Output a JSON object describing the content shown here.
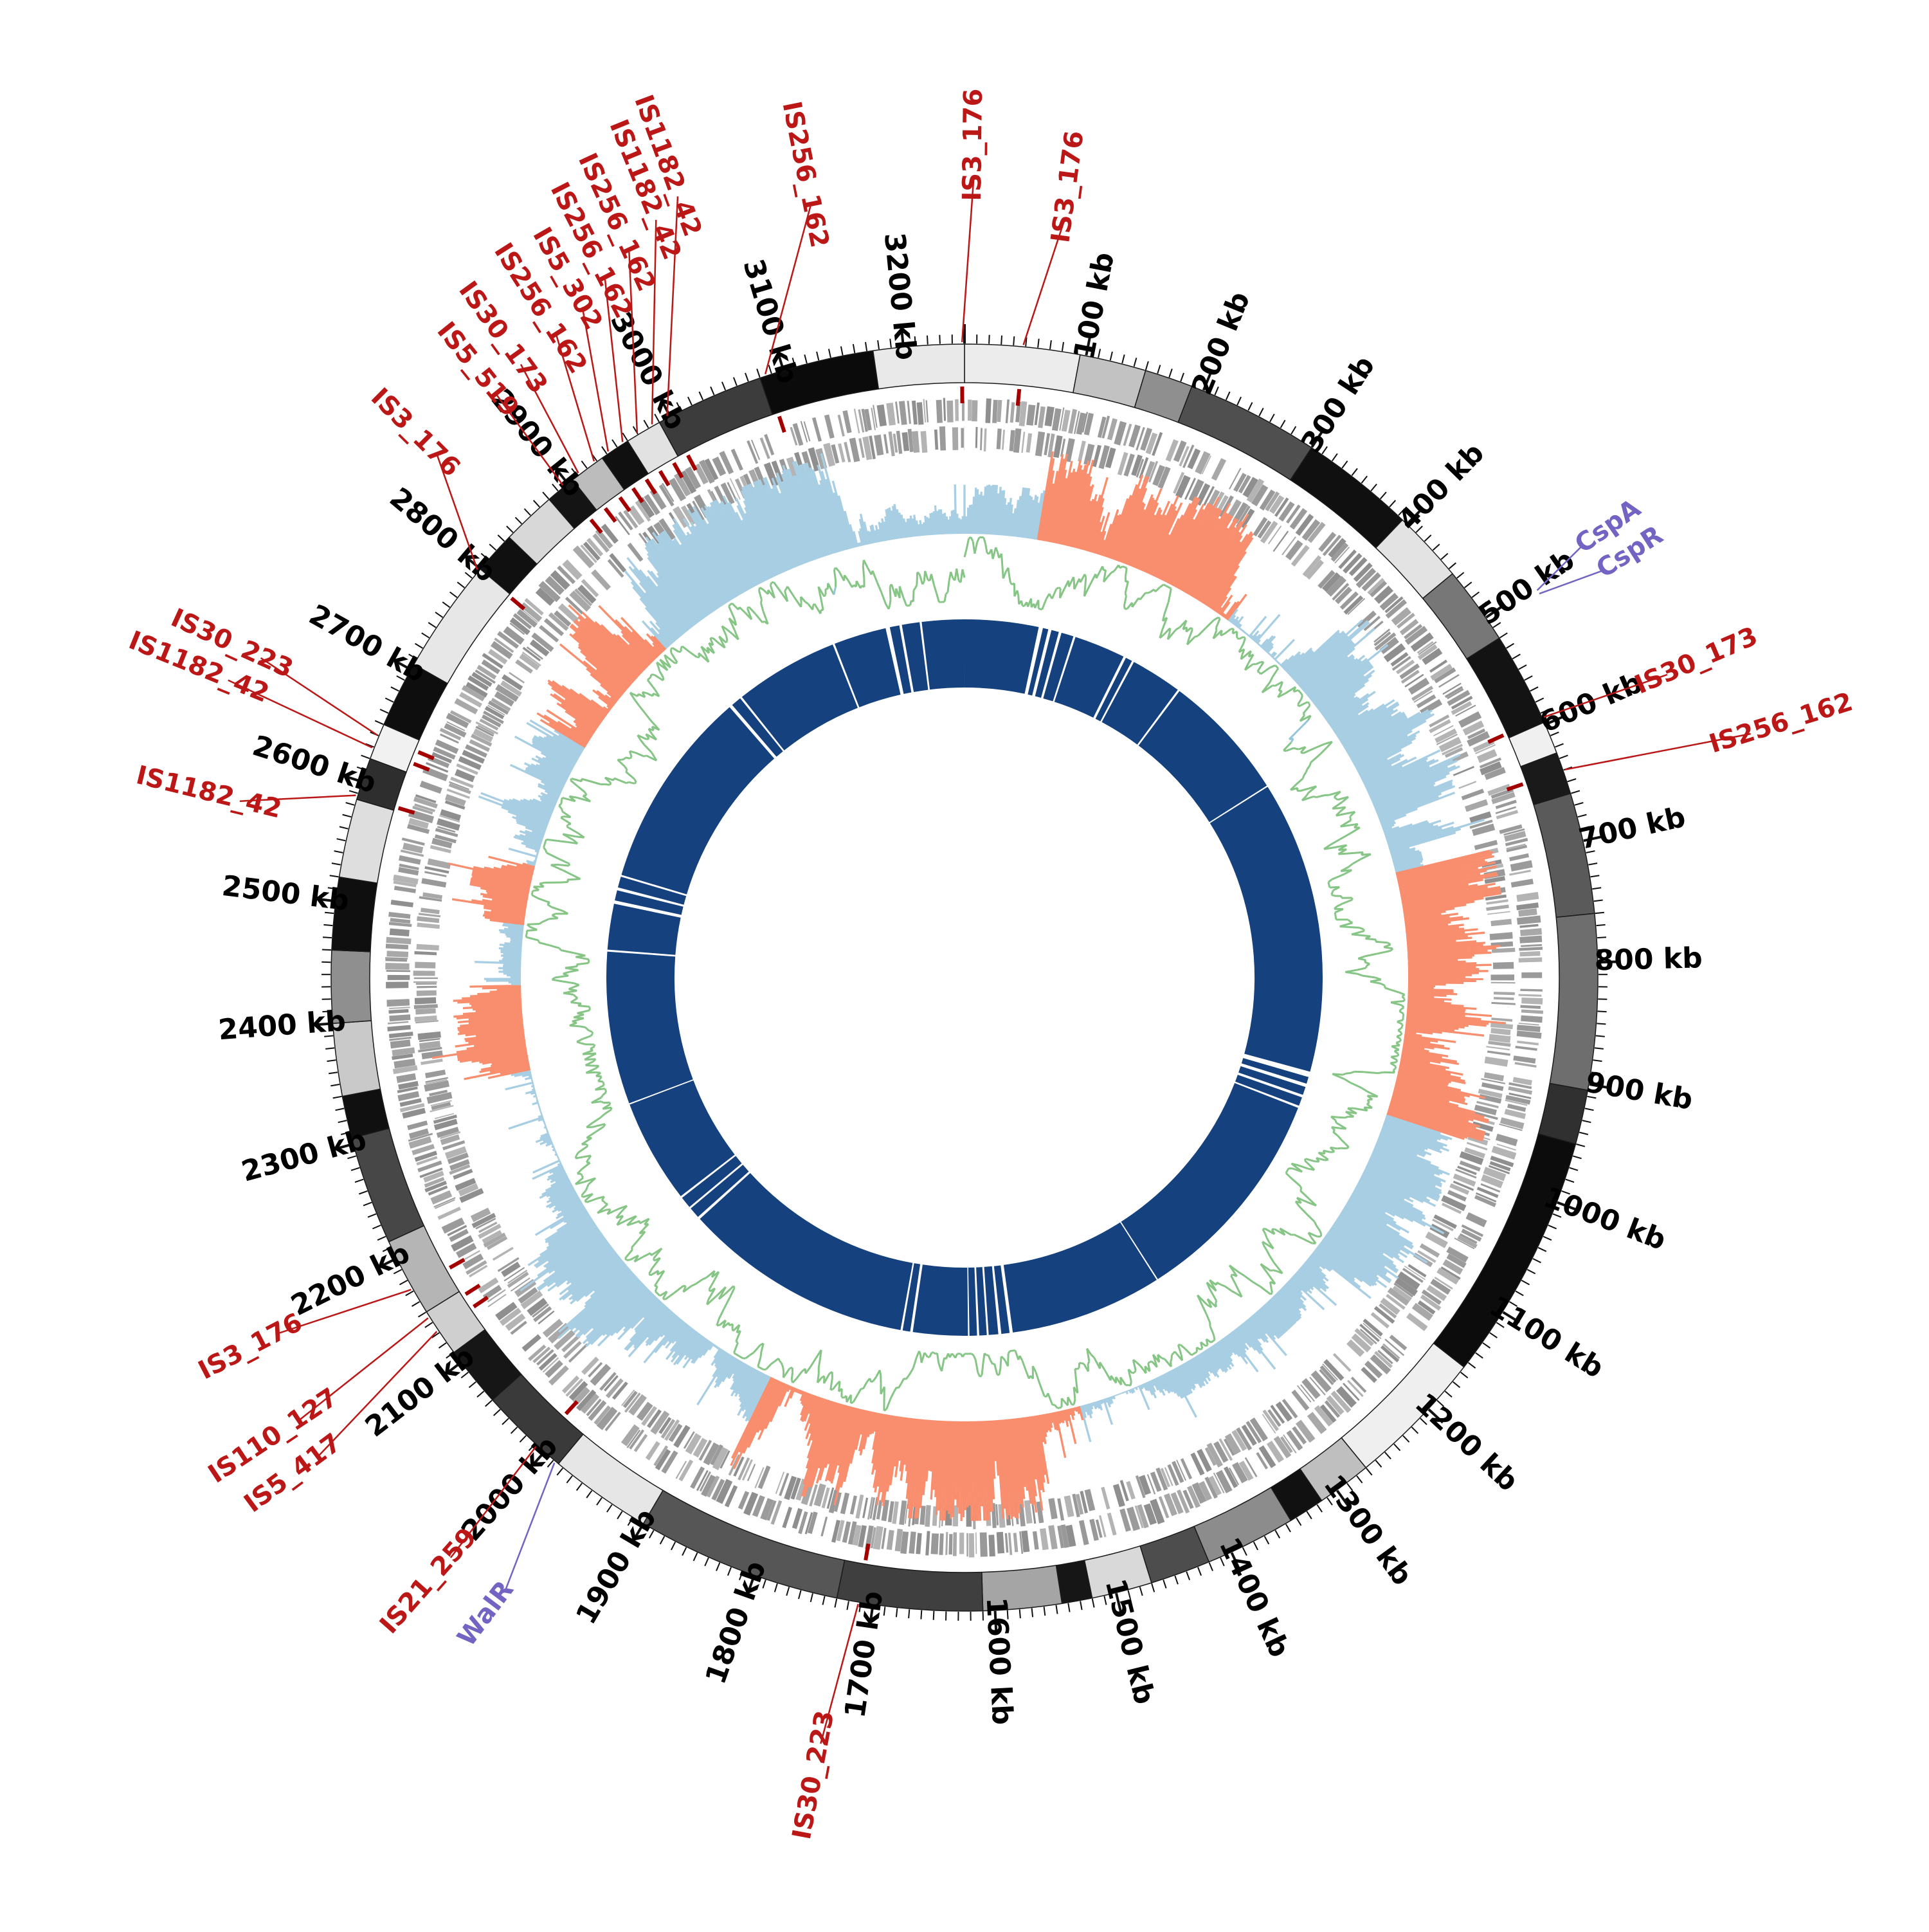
{
  "figure": {
    "background": "#ffffff",
    "description": "Circular bacterial genome map (Circos-style) with grayscale contig ring, kb scale, gene tracks, GC skew histogram, GC content line and core-genome inner ring, annotated with IS elements and regulator genes"
  },
  "chart_data": {
    "type": "circular-genome-map",
    "genome_length_kb": 3250,
    "start_position_top_kb": 0,
    "unit": "kb",
    "tick_interval_kb": 100,
    "minor_tick_kb": 10,
    "tick_labels": [
      "100 kb",
      "200 kb",
      "300 kb",
      "400 kb",
      "500 kb",
      "600 kb",
      "700 kb",
      "800 kb",
      "900 kb",
      "1000 kb",
      "1100 kb",
      "1200 kb",
      "1300 kb",
      "1400 kb",
      "1500 kb",
      "1600 kb",
      "1700 kb",
      "1800 kb",
      "1900 kb",
      "2000 kb",
      "2100 kb",
      "2200 kb",
      "2300 kb",
      "2400 kb",
      "2500 kb",
      "2600 kb",
      "2700 kb",
      "2800 kb",
      "2900 kb",
      "3000 kb",
      "3100 kb",
      "3200 kb"
    ],
    "tracks": [
      {
        "name": "karyotype-outer-ring",
        "desc": "grayscale genome segment blocks"
      },
      {
        "name": "scale-tick-ring",
        "unit": "kb",
        "major_kb": 100,
        "minor_kb": 10
      },
      {
        "name": "gene-track",
        "rows": 2,
        "color": "#a0a0a0"
      },
      {
        "name": "gc-skew-histogram",
        "positive_color": "#a8cee3",
        "negative_color": "#f88e6e"
      },
      {
        "name": "gc-content-line",
        "above_color": "#86c586",
        "below_color": "#95c4dd"
      },
      {
        "name": "core-genome-ring",
        "color": "#15417e"
      }
    ],
    "karyotype_segments": [
      [
        0,
        95,
        "#ececec"
      ],
      [
        95,
        150,
        "#c2c2c2"
      ],
      [
        150,
        190,
        "#8f8f8f"
      ],
      [
        190,
        300,
        "#4f4f4f"
      ],
      [
        300,
        395,
        "#101010"
      ],
      [
        395,
        455,
        "#e3e3e3"
      ],
      [
        455,
        520,
        "#777777"
      ],
      [
        520,
        598,
        "#131313"
      ],
      [
        598,
        625,
        "#f0f0f0"
      ],
      [
        625,
        660,
        "#1a1a1a"
      ],
      [
        660,
        760,
        "#5a5a5a"
      ],
      [
        760,
        905,
        "#6e6e6e"
      ],
      [
        905,
        950,
        "#303030"
      ],
      [
        950,
        1155,
        "#0c0c0c"
      ],
      [
        1155,
        1270,
        "#efefef"
      ],
      [
        1270,
        1315,
        "#bfbfbf"
      ],
      [
        1315,
        1345,
        "#111111"
      ],
      [
        1345,
        1420,
        "#8c8c8c"
      ],
      [
        1420,
        1470,
        "#4d4d4d"
      ],
      [
        1470,
        1520,
        "#d9d9d9"
      ],
      [
        1520,
        1545,
        "#161616"
      ],
      [
        1545,
        1610,
        "#a5a5a5"
      ],
      [
        1610,
        1730,
        "#3f3f3f"
      ],
      [
        1730,
        1900,
        "#565656"
      ],
      [
        1900,
        1985,
        "#e6e6e6"
      ],
      [
        1985,
        2060,
        "#3a3a3a"
      ],
      [
        2060,
        2110,
        "#161616"
      ],
      [
        2110,
        2150,
        "#cfcfcf"
      ],
      [
        2150,
        2215,
        "#b5b5b5"
      ],
      [
        2215,
        2305,
        "#474747"
      ],
      [
        2305,
        2340,
        "#101010"
      ],
      [
        2340,
        2400,
        "#c9c9c9"
      ],
      [
        2400,
        2460,
        "#8f8f8f"
      ],
      [
        2460,
        2520,
        "#0f0f0f"
      ],
      [
        2520,
        2585,
        "#dedede"
      ],
      [
        2585,
        2620,
        "#2e2e2e"
      ],
      [
        2620,
        2650,
        "#f1f1f1"
      ],
      [
        2650,
        2705,
        "#0e0e0e"
      ],
      [
        2705,
        2800,
        "#e7e7e7"
      ],
      [
        2800,
        2835,
        "#101010"
      ],
      [
        2835,
        2880,
        "#d8d8d8"
      ],
      [
        2880,
        2905,
        "#141414"
      ],
      [
        2905,
        2935,
        "#bcbcbc"
      ],
      [
        2935,
        2960,
        "#101010"
      ],
      [
        2960,
        2990,
        "#e2e2e2"
      ],
      [
        2990,
        3080,
        "#3c3c3c"
      ],
      [
        3080,
        3175,
        "#0b0b0b"
      ],
      [
        3175,
        3250,
        "#e9e9e9"
      ]
    ],
    "skew_regions": [
      [
        0,
        85,
        "b",
        0.5
      ],
      [
        85,
        330,
        "s",
        0.9
      ],
      [
        330,
        425,
        "b",
        0.45
      ],
      [
        425,
        540,
        "b",
        0.7
      ],
      [
        540,
        665,
        "b",
        0.95
      ],
      [
        665,
        690,
        "b",
        0.3
      ],
      [
        690,
        975,
        "s",
        1.0
      ],
      [
        975,
        1160,
        "b",
        0.8
      ],
      [
        1160,
        1300,
        "b",
        0.35
      ],
      [
        1300,
        1490,
        "b",
        0.3
      ],
      [
        1490,
        1540,
        "s",
        0.45
      ],
      [
        1540,
        1860,
        "s",
        1.0
      ],
      [
        1860,
        2000,
        "b",
        0.6
      ],
      [
        2000,
        2160,
        "b",
        0.85
      ],
      [
        2160,
        2330,
        "b",
        0.4
      ],
      [
        2330,
        2430,
        "s",
        0.7
      ],
      [
        2430,
        2500,
        "b",
        0.3
      ],
      [
        2500,
        2570,
        "s",
        0.6
      ],
      [
        2570,
        2720,
        "b",
        0.5
      ],
      [
        2720,
        2870,
        "s",
        0.85
      ],
      [
        2870,
        3140,
        "b",
        0.95
      ],
      [
        3140,
        3250,
        "b",
        0.35
      ]
    ],
    "inner_ring_gaps": [
      [
        108,
        6
      ],
      [
        122,
        5
      ],
      [
        138,
        4
      ],
      [
        160,
        3
      ],
      [
        238,
        4
      ],
      [
        252,
        3
      ],
      [
        330,
        3
      ],
      [
        520,
        2
      ],
      [
        950,
        8
      ],
      [
        968,
        5
      ],
      [
        985,
        4
      ],
      [
        1002,
        3
      ],
      [
        1330,
        2
      ],
      [
        1555,
        5
      ],
      [
        1572,
        4
      ],
      [
        1590,
        3
      ],
      [
        1604,
        3
      ],
      [
        1618,
        2
      ],
      [
        1700,
        4
      ],
      [
        1715,
        3
      ],
      [
        2055,
        4
      ],
      [
        2075,
        3
      ],
      [
        2095,
        3
      ],
      [
        2250,
        2
      ],
      [
        2475,
        3
      ],
      [
        2545,
        5
      ],
      [
        2565,
        4
      ],
      [
        2585,
        3
      ],
      [
        2880,
        5
      ],
      [
        2900,
        3
      ],
      [
        3055,
        3
      ],
      [
        3135,
        6
      ],
      [
        3155,
        4
      ],
      [
        3185,
        3
      ]
    ],
    "annotations": [
      {
        "label": "IS3_176",
        "color": "red",
        "pos": 3248,
        "lpos": 6,
        "r": 1295
      },
      {
        "label": "IS3_176",
        "color": "red",
        "pos": 48,
        "lpos": 68,
        "r": 1240
      },
      {
        "label": "IS256_162",
        "color": "red",
        "pos": 3085,
        "lpos": 3148,
        "r": 1273
      },
      {
        "label": "IS1182_42",
        "color": "red",
        "pos": 2998,
        "lpos": 3068,
        "r": 1344
      },
      {
        "label": "IS1182_42",
        "color": "red",
        "pos": 2984,
        "lpos": 3050,
        "r": 1322
      },
      {
        "label": "IS256_162",
        "color": "red",
        "pos": 2970,
        "lpos": 3026,
        "r": 1293
      },
      {
        "label": "IS256_162",
        "color": "red",
        "pos": 2956,
        "lpos": 3004,
        "r": 1271
      },
      {
        "label": "IS5_302",
        "color": "red",
        "pos": 2942,
        "lpos": 2982,
        "r": 1250
      },
      {
        "label": "IS256_162",
        "color": "red",
        "pos": 2928,
        "lpos": 2957,
        "r": 1232
      },
      {
        "label": "IS30_173",
        "color": "red",
        "pos": 2912,
        "lpos": 2926,
        "r": 1227
      },
      {
        "label": "IS5_519",
        "color": "red",
        "pos": 2896,
        "lpos": 2900,
        "r": 1211
      },
      {
        "label": "IS3_176",
        "color": "red",
        "pos": 2798,
        "lpos": 2841,
        "r": 1203
      },
      {
        "label": "IS30_223",
        "color": "red",
        "pos": 2640,
        "lpos": 2658,
        "r": 1252
      },
      {
        "label": "IS1182_42",
        "color": "red",
        "pos": 2629,
        "lpos": 2636,
        "r": 1285
      },
      {
        "label": "IS1182_42",
        "color": "red",
        "pos": 2588,
        "lpos": 2561,
        "r": 1210
      },
      {
        "label": "IS3_176",
        "color": "red",
        "pos": 2172,
        "lpos": 2190,
        "r": 1250
      },
      {
        "label": "IS110_127",
        "color": "red",
        "pos": 2145,
        "lpos": 2134,
        "r": 1290
      },
      {
        "label": "IS5_417",
        "color": "red",
        "pos": 2132,
        "lpos": 2108,
        "r": 1298
      },
      {
        "label": "IS21_259",
        "color": "red",
        "pos": 2008,
        "lpos": 2000,
        "r": 1255
      },
      {
        "label": "WalR",
        "color": "purple",
        "pos": 1988,
        "lpos": 1958,
        "r": 1238
      },
      {
        "label": "IS30_223",
        "color": "red",
        "pos": 1712,
        "lpos": 1721,
        "r": 1262
      },
      {
        "label": "CspA",
        "color": "purple",
        "pos": 505,
        "lpos": 497,
        "r": 1222,
        "ls": 1075
      },
      {
        "label": "CspR",
        "color": "purple",
        "pos": 508,
        "lpos": 519,
        "r": 1228,
        "ls": 1075
      },
      {
        "label": "IS30_173",
        "color": "red",
        "pos": 594,
        "lpos": 602,
        "r": 1240
      },
      {
        "label": "IS256_162",
        "color": "red",
        "pos": 640,
        "lpos": 657,
        "r": 1330
      }
    ],
    "colors": {
      "annotation_red": "#bb1717",
      "annotation_purple": "#7363c2",
      "hist_blue": "#a8cee3",
      "hist_salmon": "#f88e6e",
      "line_green": "#86c586",
      "line_blue": "#95c4dd",
      "inner_navy": "#15417e",
      "red_dash": "#a40000",
      "gene_gray": "#a0a0a0",
      "ring_outline": "#1a1a1a",
      "tick_color": "#111111",
      "text_black": "#000000"
    }
  }
}
